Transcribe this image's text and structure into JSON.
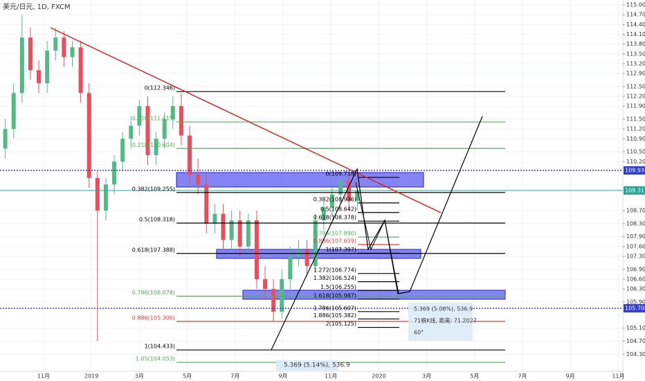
{
  "chart_data": {
    "type": "candlestick",
    "title": "美元/日元, 1D, FXCM",
    "up_color": "#53b987",
    "down_color": "#eb4d5c",
    "x": [
      -1.6,
      -1.25,
      -0.9,
      -0.55,
      -0.2,
      0.15,
      0.5,
      0.85,
      1.2,
      1.55,
      1.9,
      2.25,
      2.6,
      2.95,
      3.3,
      3.65,
      4.0,
      4.35,
      4.7,
      5.05,
      5.4,
      5.75,
      6.1,
      6.45,
      6.8,
      7.15,
      7.5,
      7.85,
      8.2,
      8.55,
      8.9,
      9.25,
      9.6,
      9.95,
      10.3,
      10.65,
      11.0,
      11.35,
      11.7,
      12.05,
      12.4,
      12.75,
      13.1
    ],
    "open": [
      110.6,
      111.2,
      112.3,
      114.0,
      113.0,
      112.6,
      113.6,
      114.0,
      113.4,
      113.7,
      112.3,
      109.7,
      108.7,
      109.5,
      110.2,
      110.9,
      111.3,
      111.9,
      110.4,
      110.9,
      111.5,
      111.9,
      111.0,
      109.8,
      109.5,
      108.3,
      108.6,
      107.8,
      108.4,
      107.6,
      108.4,
      106.6,
      106.3,
      105.6,
      106.6,
      107.3,
      107.5,
      107.0,
      108.4,
      108.8,
      109.2,
      109.6,
      109.0
    ],
    "high": [
      111.5,
      112.6,
      114.7,
      114.3,
      113.3,
      113.9,
      114.3,
      114.2,
      113.9,
      113.9,
      112.6,
      109.9,
      109.7,
      110.4,
      111.1,
      111.6,
      112.1,
      112.2,
      111.1,
      111.7,
      112.2,
      112.3,
      111.3,
      110.3,
      109.8,
      108.9,
      108.9,
      108.7,
      108.7,
      108.6,
      108.7,
      107.0,
      106.6,
      106.9,
      107.6,
      107.8,
      107.8,
      108.6,
      109.0,
      109.4,
      109.7,
      109.8,
      109.5
    ],
    "low": [
      110.3,
      110.9,
      112.0,
      112.7,
      112.3,
      112.3,
      113.3,
      113.1,
      113.1,
      112.0,
      109.4,
      104.7,
      108.4,
      109.2,
      109.9,
      110.6,
      111.0,
      110.1,
      110.1,
      110.6,
      111.2,
      110.7,
      109.5,
      109.2,
      108.0,
      108.0,
      107.5,
      107.5,
      107.3,
      107.3,
      106.3,
      106.0,
      105.3,
      105.4,
      106.3,
      107.0,
      106.7,
      106.8,
      108.1,
      108.5,
      108.9,
      108.7,
      108.7
    ],
    "close": [
      111.2,
      112.3,
      114.0,
      113.0,
      112.6,
      113.6,
      114.0,
      113.4,
      113.7,
      112.3,
      109.7,
      108.7,
      109.5,
      110.2,
      110.9,
      111.3,
      111.9,
      110.4,
      110.9,
      111.5,
      111.9,
      111.0,
      109.8,
      109.5,
      108.3,
      108.6,
      107.8,
      108.4,
      107.6,
      108.4,
      106.6,
      106.3,
      105.6,
      106.6,
      107.3,
      107.5,
      107.0,
      108.4,
      108.8,
      109.2,
      109.6,
      109.0,
      109.3
    ],
    "xlim": [
      -1.82,
      24.19
    ],
    "xticks": [
      {
        "value": 0,
        "label": "11月"
      },
      {
        "value": 2,
        "label": "2019"
      },
      {
        "value": 4,
        "label": "3月"
      },
      {
        "value": 6,
        "label": "5月"
      },
      {
        "value": 8,
        "label": "7月"
      },
      {
        "value": 10,
        "label": "9月"
      },
      {
        "value": 12,
        "label": "11月"
      },
      {
        "value": 14,
        "label": "2020"
      },
      {
        "value": 16,
        "label": "3月"
      },
      {
        "value": 18,
        "label": "5月"
      },
      {
        "value": 20,
        "label": "7月"
      },
      {
        "value": 22,
        "label": "9月"
      },
      {
        "value": 24,
        "label": "11月"
      }
    ],
    "ylim": [
      103.8,
      115.15
    ],
    "yticks": [
      {
        "value": 115,
        "label": "115.000"
      },
      {
        "value": 114.7,
        "label": "114.700"
      },
      {
        "value": 114.4,
        "label": "114.400"
      },
      {
        "value": 114.1,
        "label": "114.100"
      },
      {
        "value": 113.8,
        "label": "113.800"
      },
      {
        "value": 113.5,
        "label": "113.500"
      },
      {
        "value": 113.2,
        "label": "113.200"
      },
      {
        "value": 112.9,
        "label": "112.900"
      },
      {
        "value": 112.5,
        "label": "112.500"
      },
      {
        "value": 112.2,
        "label": "112.200"
      },
      {
        "value": 111.9,
        "label": "111.900"
      },
      {
        "value": 111.5,
        "label": "111.500"
      },
      {
        "value": 111.2,
        "label": "111.200"
      },
      {
        "value": 110.9,
        "label": "110.900"
      },
      {
        "value": 110.5,
        "label": "110.500"
      },
      {
        "value": 110.2,
        "label": "110.200"
      },
      {
        "value": 108.7,
        "label": "108.700"
      },
      {
        "value": 108.3,
        "label": "108.300"
      },
      {
        "value": 107.9,
        "label": "107.900"
      },
      {
        "value": 107.6,
        "label": "107.600"
      },
      {
        "value": 107.3,
        "label": "107.300"
      },
      {
        "value": 106.9,
        "label": "106.900"
      },
      {
        "value": 106.6,
        "label": "106.600"
      },
      {
        "value": 106.3,
        "label": "106.300"
      },
      {
        "value": 105.9,
        "label": "105.900"
      },
      {
        "value": 105.1,
        "label": "105.100"
      },
      {
        "value": 104.7,
        "label": "104.700"
      },
      {
        "value": 104.3,
        "label": "104.300"
      }
    ],
    "price_lines": [
      {
        "value": 109.931,
        "label": "109.931",
        "color": "#2f3cd6",
        "dotted": true
      },
      {
        "value": 109.317,
        "label": "109.317",
        "color": "#26a69a",
        "dotted": false
      },
      {
        "value": 105.708,
        "label": "105.708",
        "color": "#2f3cd6",
        "dotted": true
      }
    ],
    "fib_left": [
      {
        "value": 112.346,
        "label": "0(112.346)",
        "color": "#000000"
      },
      {
        "value": 111.415,
        "label": "0.118(111.415)",
        "color": "#4caf50"
      },
      {
        "value": 110.604,
        "label": "0.218(110.604)",
        "color": "#4caf50"
      },
      {
        "value": 109.255,
        "label": "0.382(109.255)",
        "color": "#000000"
      },
      {
        "value": 108.318,
        "label": "0.5(108.318)",
        "color": "#000000"
      },
      {
        "value": 107.388,
        "label": "0.618(107.388)",
        "color": "#000000"
      },
      {
        "value": 106.078,
        "label": "0.786(106.078)",
        "color": "#4caf50"
      },
      {
        "value": 105.306,
        "label": "0.886(105.306)",
        "color": "#e53935"
      },
      {
        "value": 104.433,
        "label": "1(104.433)",
        "color": "#000000"
      },
      {
        "value": 104.053,
        "label": "1.05(104.053)",
        "color": "#4caf50"
      }
    ],
    "fib_right": [
      {
        "value": 109.718,
        "label": "0(109.718)",
        "color": "#000000"
      },
      {
        "value": 108.936,
        "label": "0.382(108.936)",
        "color": "#000000"
      },
      {
        "value": 108.642,
        "label": "0.5(108.642)",
        "color": "#000000"
      },
      {
        "value": 108.378,
        "label": "0.618(108.378)",
        "color": "#000000"
      },
      {
        "value": 107.89,
        "label": "0.786(107.890)",
        "color": "#4caf50"
      },
      {
        "value": 107.659,
        "label": "0.886(107.659)",
        "color": "#e53935"
      },
      {
        "value": 107.397,
        "label": "1(107.397)",
        "color": "#000000"
      },
      {
        "value": 106.774,
        "label": "1.272(106.774)",
        "color": "#000000"
      },
      {
        "value": 106.524,
        "label": "1.382(106.524)",
        "color": "#000000"
      },
      {
        "value": 106.255,
        "label": "1.5(106.255)",
        "color": "#000000"
      },
      {
        "value": 105.987,
        "label": "1.618(105.987)",
        "color": "#000000"
      },
      {
        "value": 105.607,
        "label": "1.786(105.607)",
        "color": "#000000"
      },
      {
        "value": 105.382,
        "label": "1.886(105.382)",
        "color": "#000000"
      },
      {
        "value": 105.125,
        "label": "2(105.125)",
        "color": "#000000"
      }
    ],
    "measure_lines": [
      "5.369 (5.08%), 536.9",
      "71根K线, 距离: 71.2027",
      "60°"
    ],
    "bottom_measure": "5.369 (5.14%), 536.9"
  }
}
